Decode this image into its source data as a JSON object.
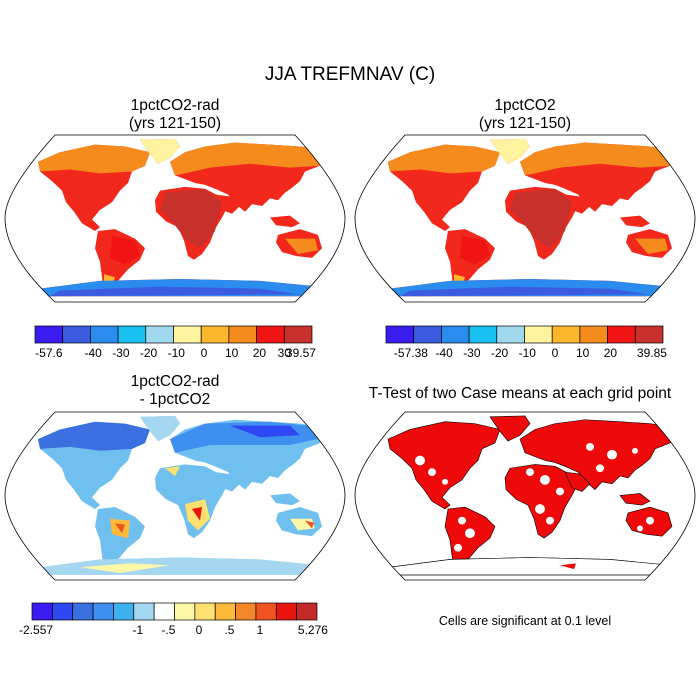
{
  "title": "JJA TREFMNAV (C)",
  "panels": [
    {
      "id": "rad",
      "title_line1": "1pctCO2-rad",
      "title_line2": "(yrs 121-150)"
    },
    {
      "id": "base",
      "title_line1": "1pctCO2",
      "title_line2": "(yrs 121-150)"
    },
    {
      "id": "diff",
      "title_line1": "1pctCO2-rad",
      "title_line2": "- 1pctCO2"
    },
    {
      "id": "ttest",
      "title_line1": "T-Test of two Case means at each grid point"
    }
  ],
  "note": "Cells are significant at 0.1 level",
  "colorbars": [
    {
      "id": "cb-rad",
      "colors": [
        "#3a1cf0",
        "#3c5ce0",
        "#2b8cf0",
        "#18c0f0",
        "#a0d8ee",
        "#fff3a0",
        "#fbb72a",
        "#f58a1d",
        "#f01414",
        "#c8302b"
      ],
      "labels": [
        "-57.6",
        "-40",
        "-30",
        "-20",
        "-10",
        "0",
        "10",
        "20",
        "30",
        "39.57"
      ]
    },
    {
      "id": "cb-base",
      "colors": [
        "#3a1cf0",
        "#3c5ce0",
        "#2b8cf0",
        "#18c0f0",
        "#a0d8ee",
        "#fff3a0",
        "#fbb72a",
        "#f58a1d",
        "#f01414",
        "#c8302b"
      ],
      "labels": [
        "-57.38",
        "-40",
        "-30",
        "-20",
        "-10",
        "0",
        "10",
        "20",
        "",
        "39.85"
      ]
    },
    {
      "id": "cb-diff",
      "colors": [
        "#3a1cf0",
        "#2d48f0",
        "#3c70e0",
        "#3f8ff0",
        "#3fb0ef",
        "#a5d8f0",
        "#ffffff",
        "#fff7a8",
        "#ffe070",
        "#ffb93a",
        "#f4872a",
        "#ef5420",
        "#e81410",
        "#c22a2a"
      ],
      "labels": [
        "-2.557",
        "-1",
        "-.5",
        "0",
        ".5",
        "1",
        "5.276"
      ]
    }
  ]
}
